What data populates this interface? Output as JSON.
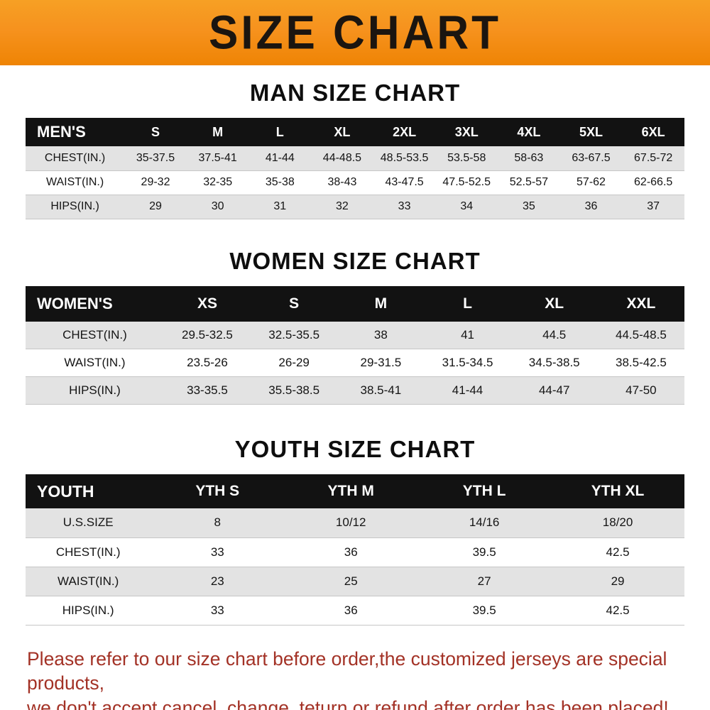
{
  "banner": {
    "title": "SIZE CHART"
  },
  "chart_data": [
    {
      "type": "table",
      "title": "MAN SIZE CHART",
      "columns": [
        "MEN'S",
        "S",
        "M",
        "L",
        "XL",
        "2XL",
        "3XL",
        "4XL",
        "5XL",
        "6XL"
      ],
      "rows": [
        [
          "CHEST(IN.)",
          "35-37.5",
          "37.5-41",
          "41-44",
          "44-48.5",
          "48.5-53.5",
          "53.5-58",
          "58-63",
          "63-67.5",
          "67.5-72"
        ],
        [
          "WAIST(IN.)",
          "29-32",
          "32-35",
          "35-38",
          "38-43",
          "43-47.5",
          "47.5-52.5",
          "52.5-57",
          "57-62",
          "62-66.5"
        ],
        [
          "HIPS(IN.)",
          "29",
          "30",
          "31",
          "32",
          "33",
          "34",
          "35",
          "36",
          "37"
        ]
      ]
    },
    {
      "type": "table",
      "title": "WOMEN SIZE CHART",
      "columns": [
        "WOMEN'S",
        "XS",
        "S",
        "M",
        "L",
        "XL",
        "XXL"
      ],
      "rows": [
        [
          "CHEST(IN.)",
          "29.5-32.5",
          "32.5-35.5",
          "38",
          "41",
          "44.5",
          "44.5-48.5"
        ],
        [
          "WAIST(IN.)",
          "23.5-26",
          "26-29",
          "29-31.5",
          "31.5-34.5",
          "34.5-38.5",
          "38.5-42.5"
        ],
        [
          "HIPS(IN.)",
          "33-35.5",
          "35.5-38.5",
          "38.5-41",
          "41-44",
          "44-47",
          "47-50"
        ]
      ]
    },
    {
      "type": "table",
      "title": "YOUTH SIZE CHART",
      "columns": [
        "YOUTH",
        "YTH S",
        "YTH M",
        "YTH L",
        "YTH XL"
      ],
      "rows": [
        [
          "U.S.SIZE",
          "8",
          "10/12",
          "14/16",
          "18/20"
        ],
        [
          "CHEST(IN.)",
          "33",
          "36",
          "39.5",
          "42.5"
        ],
        [
          "WAIST(IN.)",
          "23",
          "25",
          "27",
          "29"
        ],
        [
          "HIPS(IN.)",
          "33",
          "36",
          "39.5",
          "42.5"
        ]
      ]
    }
  ],
  "footer": {
    "line1": "Please refer to our size chart before order,the customized jerseys are special products,",
    "line2": "we don't accept cancel, change, teturn or refund after order has been placed!"
  },
  "colors": {
    "banner_bg": "#F6921E",
    "table_header_bg": "#121212",
    "row_stripe_bg": "#E3E3E3",
    "footer_text": "#A33226"
  }
}
